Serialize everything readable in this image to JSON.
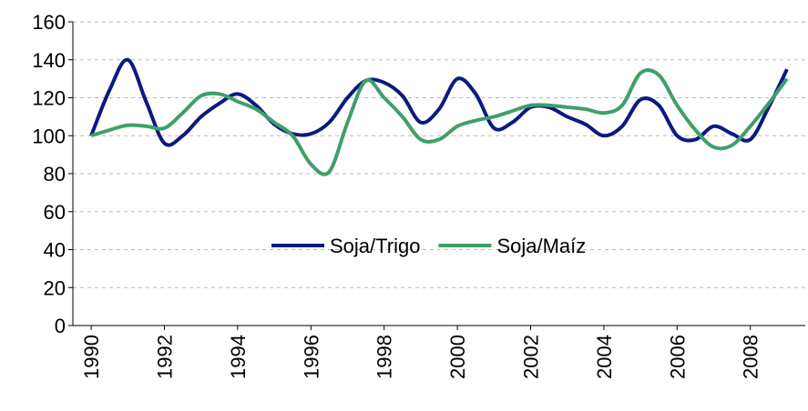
{
  "chart_data": {
    "type": "line",
    "x": [
      1990,
      1990.5,
      1991,
      1991.5,
      1992,
      1992.5,
      1993,
      1993.5,
      1994,
      1994.5,
      1995,
      1995.5,
      1996,
      1996.5,
      1997,
      1997.5,
      1998,
      1998.5,
      1999,
      1999.5,
      2000,
      2000.5,
      2001,
      2001.5,
      2002,
      2002.5,
      2003,
      2003.5,
      2004,
      2004.5,
      2005,
      2005.5,
      2006,
      2006.5,
      2007,
      2007.5,
      2008,
      2008.5,
      2009
    ],
    "series": [
      {
        "name": "Soja/Trigo",
        "color": "#0a1a80",
        "values": [
          100,
          124,
          140,
          118,
          96,
          100,
          110,
          117,
          122,
          116,
          106,
          101,
          101,
          107,
          120,
          129,
          128,
          121,
          107,
          114,
          130,
          122,
          104,
          107,
          115,
          115,
          110,
          106,
          100,
          105,
          119,
          116,
          100,
          98,
          105,
          101,
          98,
          115,
          135
        ]
      },
      {
        "name": "Soja/Maíz",
        "color": "#3f9f6a",
        "values": [
          100,
          103,
          105.5,
          105,
          104,
          112,
          121,
          122,
          118,
          114,
          107,
          100,
          85,
          81,
          107,
          129,
          120,
          110,
          98,
          98,
          105,
          108,
          110,
          113,
          116,
          116,
          115,
          114,
          112,
          116,
          133,
          132,
          116,
          103,
          94,
          95,
          105,
          117,
          130
        ]
      }
    ],
    "xlim": [
      1989.5,
      2009.5
    ],
    "xticks": [
      1990,
      1992,
      1994,
      1996,
      1998,
      2000,
      2002,
      2004,
      2006,
      2008
    ],
    "ylim": [
      0,
      160
    ],
    "yticks": [
      0,
      20,
      40,
      60,
      80,
      100,
      120,
      140,
      160
    ],
    "grid": true,
    "legend": "center"
  }
}
